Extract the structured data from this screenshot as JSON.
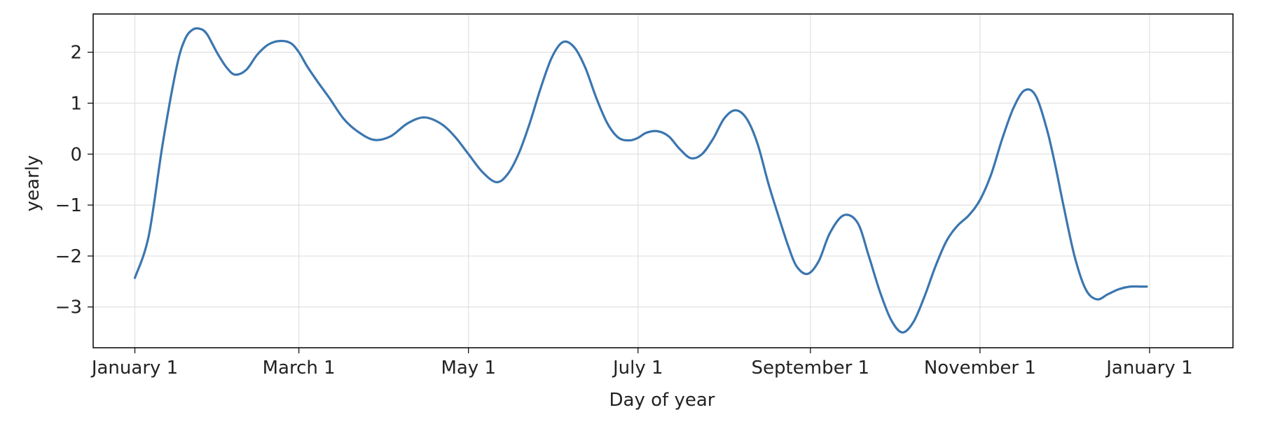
{
  "chart_data": {
    "type": "line",
    "title": "",
    "xlabel": "Day of year",
    "ylabel": "yearly",
    "xlim": [
      -15,
      395
    ],
    "ylim": [
      -3.8,
      2.75
    ],
    "grid": true,
    "legend": "none",
    "colors": {
      "line": "#3b76af",
      "grid": "#e0e0e0",
      "axes": "#000000"
    },
    "x_ticks": [
      {
        "value": 0,
        "label": "January 1"
      },
      {
        "value": 59,
        "label": "March 1"
      },
      {
        "value": 120,
        "label": "May 1"
      },
      {
        "value": 181,
        "label": "July 1"
      },
      {
        "value": 243,
        "label": "September 1"
      },
      {
        "value": 304,
        "label": "November 1"
      },
      {
        "value": 365,
        "label": "January 1"
      }
    ],
    "y_ticks": [
      {
        "value": 2,
        "label": "2"
      },
      {
        "value": 1,
        "label": "1"
      },
      {
        "value": 0,
        "label": "0"
      },
      {
        "value": -1,
        "label": "−1"
      },
      {
        "value": -2,
        "label": "−2"
      },
      {
        "value": -3,
        "label": "−3"
      }
    ],
    "series": [
      {
        "x": [
          0,
          5,
          10,
          15,
          18,
          21,
          24,
          26,
          28,
          30,
          33,
          36,
          40,
          44,
          48,
          52,
          56,
          59,
          62,
          66,
          70,
          75,
          80,
          86,
          92,
          98,
          104,
          110,
          115,
          120,
          125,
          130,
          134,
          138,
          142,
          146,
          150,
          154,
          158,
          162,
          166,
          170,
          174,
          178,
          181,
          184,
          188,
          192,
          196,
          200,
          204,
          208,
          212,
          216,
          220,
          224,
          228,
          232,
          235,
          238,
          242,
          246,
          250,
          255,
          260,
          264,
          268,
          272,
          276,
          280,
          284,
          288,
          292,
          296,
          300,
          304,
          308,
          312,
          316,
          320,
          324,
          328,
          331,
          334,
          338,
          342,
          346,
          350,
          354,
          358,
          362,
          364
        ],
        "y": [
          -2.43,
          -1.6,
          0.2,
          1.7,
          2.25,
          2.45,
          2.45,
          2.35,
          2.15,
          1.95,
          1.7,
          1.56,
          1.65,
          1.95,
          2.15,
          2.22,
          2.18,
          2.0,
          1.72,
          1.4,
          1.1,
          0.7,
          0.45,
          0.28,
          0.35,
          0.6,
          0.72,
          0.6,
          0.35,
          0.0,
          -0.35,
          -0.55,
          -0.4,
          0.0,
          0.6,
          1.3,
          1.9,
          2.2,
          2.1,
          1.7,
          1.1,
          0.6,
          0.32,
          0.27,
          0.32,
          0.42,
          0.45,
          0.35,
          0.1,
          -0.08,
          0.0,
          0.3,
          0.7,
          0.86,
          0.7,
          0.2,
          -0.6,
          -1.3,
          -1.8,
          -2.2,
          -2.35,
          -2.1,
          -1.55,
          -1.2,
          -1.35,
          -2.0,
          -2.7,
          -3.25,
          -3.5,
          -3.3,
          -2.8,
          -2.2,
          -1.7,
          -1.4,
          -1.2,
          -0.9,
          -0.4,
          0.3,
          0.9,
          1.25,
          1.15,
          0.5,
          -0.2,
          -1.0,
          -2.0,
          -2.65,
          -2.85,
          -2.75,
          -2.65,
          -2.6,
          -2.6,
          -2.6
        ]
      }
    ]
  }
}
